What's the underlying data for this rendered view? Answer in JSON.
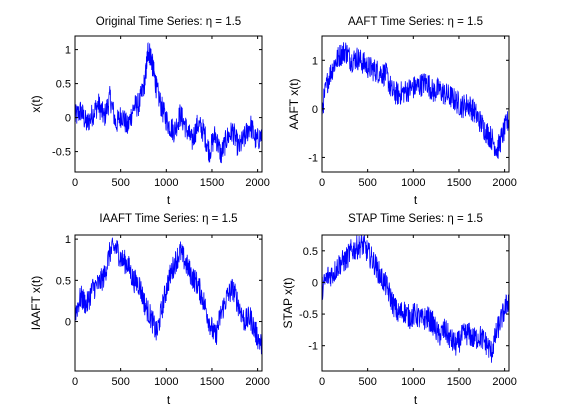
{
  "chart_data": [
    {
      "type": "line",
      "title": "Original Time Series: η = 1.5",
      "xlabel": "t",
      "ylabel": "x(t)",
      "xlim": [
        0,
        2048
      ],
      "ylim": [
        -0.8,
        1.2
      ],
      "xticks": [
        0,
        500,
        1000,
        1500,
        2000
      ],
      "yticks": [
        -0.5,
        0,
        0.5,
        1
      ],
      "ytick_labels": [
        "-0.5",
        "0",
        "0.5",
        "1"
      ],
      "line_color": "#0000ff",
      "x": [
        0,
        64,
        128,
        192,
        256,
        320,
        384,
        448,
        512,
        576,
        640,
        704,
        768,
        800,
        832,
        864,
        896,
        960,
        1024,
        1088,
        1152,
        1216,
        1280,
        1344,
        1408,
        1472,
        1536,
        1600,
        1664,
        1728,
        1792,
        1856,
        1920,
        1984,
        2048
      ],
      "values": [
        0.0,
        0.1,
        -0.1,
        0.05,
        0.2,
        0.0,
        0.3,
        -0.1,
        0.05,
        -0.15,
        0.15,
        0.2,
        0.55,
        1.0,
        0.9,
        0.65,
        0.4,
        0.1,
        -0.1,
        -0.2,
        0.05,
        -0.15,
        -0.35,
        -0.1,
        -0.2,
        -0.5,
        -0.25,
        -0.55,
        -0.3,
        -0.2,
        -0.45,
        -0.3,
        -0.1,
        -0.35,
        -0.25
      ]
    },
    {
      "type": "line",
      "title": "AAFT Time Series: η = 1.5",
      "xlabel": "t",
      "ylabel": "AAFT  x(t)",
      "xlim": [
        0,
        2048
      ],
      "ylim": [
        -1.3,
        1.5
      ],
      "xticks": [
        0,
        500,
        1000,
        1500,
        2000
      ],
      "yticks": [
        -1,
        0,
        1
      ],
      "ytick_labels": [
        "-1",
        "0",
        "1"
      ],
      "line_color": "#0000ff",
      "x": [
        0,
        64,
        128,
        192,
        256,
        320,
        384,
        448,
        512,
        576,
        640,
        704,
        768,
        832,
        896,
        960,
        1024,
        1088,
        1152,
        1216,
        1280,
        1344,
        1408,
        1472,
        1536,
        1600,
        1664,
        1728,
        1792,
        1856,
        1920,
        1984,
        2048
      ],
      "values": [
        0.0,
        0.6,
        0.9,
        1.1,
        1.2,
        1.0,
        1.05,
        0.95,
        0.85,
        0.8,
        0.75,
        0.7,
        0.35,
        0.3,
        0.35,
        0.4,
        0.45,
        0.5,
        0.55,
        0.35,
        0.4,
        0.3,
        0.25,
        0.15,
        0.05,
        0.1,
        -0.05,
        -0.25,
        -0.45,
        -0.6,
        -0.85,
        -0.5,
        -0.2
      ]
    },
    {
      "type": "line",
      "title": "IAAFT Time Series: η = 1.5",
      "xlabel": "t",
      "ylabel": "IAAFT  x(t)",
      "xlim": [
        0,
        2048
      ],
      "ylim": [
        -0.6,
        1.05
      ],
      "xticks": [
        0,
        500,
        1000,
        1500,
        2000
      ],
      "yticks": [
        0,
        0.5,
        1
      ],
      "ytick_labels": [
        "0",
        "0.5",
        "1"
      ],
      "line_color": "#0000ff",
      "x": [
        0,
        64,
        128,
        192,
        256,
        320,
        384,
        448,
        512,
        576,
        640,
        704,
        768,
        832,
        896,
        960,
        1024,
        1088,
        1152,
        1216,
        1280,
        1344,
        1408,
        1472,
        1536,
        1600,
        1664,
        1728,
        1792,
        1856,
        1920,
        1984,
        2048
      ],
      "values": [
        0.1,
        0.3,
        0.2,
        0.4,
        0.45,
        0.55,
        0.85,
        0.9,
        0.75,
        0.7,
        0.5,
        0.45,
        0.2,
        0.05,
        -0.15,
        0.2,
        0.5,
        0.7,
        0.85,
        0.7,
        0.55,
        0.45,
        0.25,
        0.0,
        -0.2,
        0.1,
        0.3,
        0.4,
        0.2,
        0.0,
        0.05,
        -0.15,
        -0.3
      ]
    },
    {
      "type": "line",
      "title": "STAP Time Series: η = 1.5",
      "xlabel": "t",
      "ylabel": "STAP x(t)",
      "xlim": [
        0,
        2048
      ],
      "ylim": [
        -1.4,
        0.75
      ],
      "xticks": [
        0,
        500,
        1000,
        1500,
        2000
      ],
      "yticks": [
        -1,
        -0.5,
        0,
        0.5
      ],
      "ytick_labels": [
        "-1",
        "-0.5",
        "0",
        "0.5"
      ],
      "line_color": "#0000ff",
      "x": [
        0,
        64,
        128,
        192,
        256,
        320,
        384,
        448,
        512,
        576,
        640,
        704,
        768,
        832,
        896,
        960,
        1024,
        1088,
        1152,
        1216,
        1280,
        1344,
        1408,
        1472,
        1536,
        1600,
        1664,
        1728,
        1792,
        1856,
        1920,
        1984,
        2048
      ],
      "values": [
        -0.1,
        0.1,
        0.15,
        0.3,
        0.35,
        0.5,
        0.55,
        0.6,
        0.45,
        0.3,
        0.1,
        -0.05,
        -0.3,
        -0.5,
        -0.45,
        -0.55,
        -0.5,
        -0.6,
        -0.55,
        -0.65,
        -0.85,
        -0.75,
        -0.9,
        -1.0,
        -0.85,
        -0.8,
        -0.9,
        -0.85,
        -0.95,
        -1.1,
        -0.75,
        -0.5,
        -0.25
      ]
    }
  ]
}
